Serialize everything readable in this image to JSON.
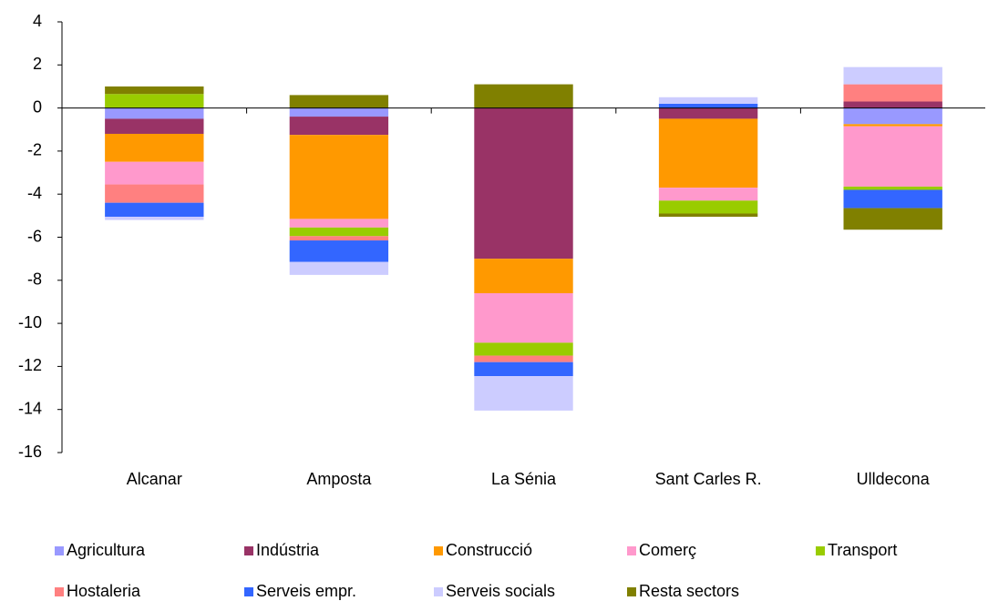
{
  "chart_data": {
    "type": "stacked_bar",
    "categories": [
      "Alcanar",
      "Amposta",
      "La Sénia",
      "Sant Carles R.",
      "Ulldecona"
    ],
    "series": [
      {
        "name": "Agricultura",
        "color": "#9999ff",
        "values": [
          -0.5,
          -0.4,
          0,
          0,
          -0.75
        ]
      },
      {
        "name": "Indústria",
        "color": "#993366",
        "values": [
          -0.7,
          -0.85,
          -7.0,
          -0.5,
          0.3
        ]
      },
      {
        "name": "Construcció",
        "color": "#ff9900",
        "values": [
          -1.3,
          -3.9,
          -1.6,
          -3.2,
          -0.1
        ]
      },
      {
        "name": "Comerç",
        "color": "#ff99cc",
        "values": [
          -1.05,
          -0.4,
          -2.3,
          -0.6,
          -2.8
        ]
      },
      {
        "name": "Transport",
        "color": "#99cc00",
        "values": [
          0.65,
          -0.4,
          -0.6,
          -0.6,
          -0.15
        ]
      },
      {
        "name": "Hostaleria",
        "color": "#ff8080",
        "values": [
          -0.85,
          -0.2,
          -0.3,
          0,
          0.8
        ]
      },
      {
        "name": "Serveis empr.",
        "color": "#3366ff",
        "values": [
          -0.65,
          -1.0,
          -0.65,
          0.2,
          -0.85
        ]
      },
      {
        "name": "Serveis socials",
        "color": "#ccccff",
        "values": [
          -0.15,
          -0.6,
          -1.6,
          0.3,
          0.8
        ]
      },
      {
        "name": "Resta sectors",
        "color": "#808000",
        "values": [
          0.35,
          0.6,
          1.1,
          -0.15,
          -1.0
        ]
      }
    ],
    "ylim": [
      -16,
      4
    ],
    "yticks": [
      -16,
      -14,
      -12,
      -10,
      -8,
      -6,
      -4,
      -2,
      0,
      2,
      4
    ],
    "grid": false,
    "legend": "bottom"
  }
}
